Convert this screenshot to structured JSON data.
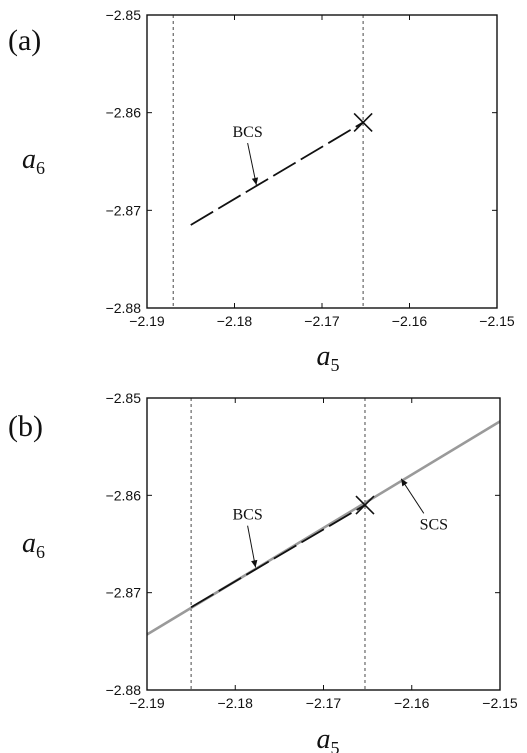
{
  "chart_data": [
    {
      "type": "line",
      "panel_label": "(a)",
      "xlabel": {
        "main": "a",
        "sub": "5"
      },
      "ylabel": {
        "main": "a",
        "sub": "6"
      },
      "xlim": [
        -2.19,
        -2.15
      ],
      "ylim": [
        -2.88,
        -2.85
      ],
      "xticks": [
        -2.19,
        -2.18,
        -2.17,
        -2.16,
        -2.15
      ],
      "xtick_labels": [
        "−2.19",
        "−2.18",
        "−2.17",
        "−2.16",
        "−2.15"
      ],
      "yticks": [
        -2.88,
        -2.87,
        -2.86,
        -2.85
      ],
      "ytick_labels": [
        "−2.88",
        "−2.87",
        "−2.86",
        "−2.85"
      ],
      "vlines": [
        -2.187,
        -2.1653
      ],
      "series": [
        {
          "name": "BCS",
          "style": "dashed",
          "color": "#111111",
          "x": [
            -2.185,
            -2.1653
          ],
          "y": [
            -2.8715,
            -2.861
          ]
        }
      ],
      "marker": {
        "x": -2.1653,
        "y": -2.861,
        "symbol": "x"
      },
      "annotations": [
        {
          "text": "BCS",
          "text_x": -2.1785,
          "text_y": -2.8625,
          "arrow_to": [
            -2.1775,
            -2.8674
          ]
        }
      ],
      "grid": false
    },
    {
      "type": "line",
      "panel_label": "(b)",
      "xlabel": {
        "main": "a",
        "sub": "5"
      },
      "ylabel": {
        "main": "a",
        "sub": "6"
      },
      "xlim": [
        -2.19,
        -2.15
      ],
      "ylim": [
        -2.88,
        -2.85
      ],
      "xticks": [
        -2.19,
        -2.18,
        -2.17,
        -2.16,
        -2.15
      ],
      "xtick_labels": [
        "−2.19",
        "−2.18",
        "−2.17",
        "−2.16",
        "−2.15"
      ],
      "yticks": [
        -2.88,
        -2.87,
        -2.86,
        -2.85
      ],
      "ytick_labels": [
        "−2.88",
        "−2.87",
        "−2.86",
        "−2.85"
      ],
      "vlines": [
        -2.185,
        -2.1653
      ],
      "series": [
        {
          "name": "SCS",
          "style": "solid",
          "color": "#9a9a9a",
          "x": [
            -2.19,
            -2.15
          ],
          "y": [
            -2.8743,
            -2.8524
          ]
        },
        {
          "name": "BCS",
          "style": "dashed",
          "color": "#111111",
          "x": [
            -2.185,
            -2.1653
          ],
          "y": [
            -2.8715,
            -2.861
          ]
        }
      ],
      "marker": {
        "x": -2.1653,
        "y": -2.861,
        "symbol": "x"
      },
      "annotations": [
        {
          "text": "BCS",
          "text_x": -2.1786,
          "text_y": -2.8625,
          "arrow_to": [
            -2.1777,
            -2.8674
          ]
        },
        {
          "text": "SCS",
          "text_x": -2.1575,
          "text_y": -2.8635,
          "arrow_to": [
            -2.1612,
            -2.8583
          ]
        }
      ],
      "grid": false
    }
  ]
}
